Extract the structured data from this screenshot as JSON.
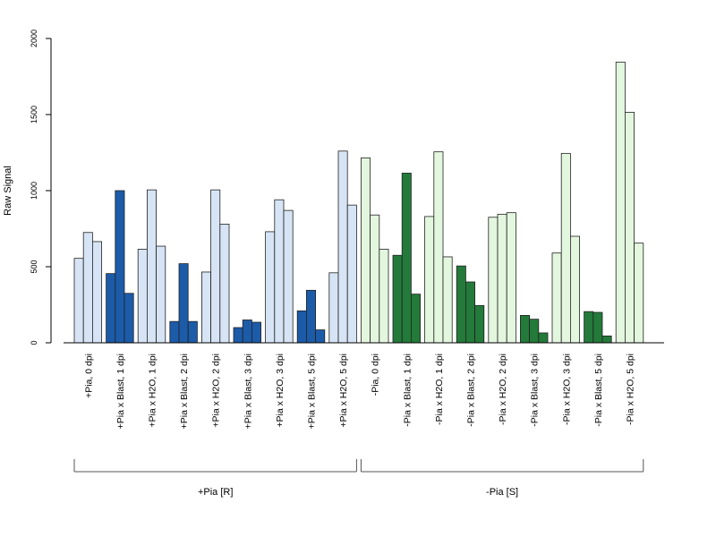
{
  "chart_data": {
    "type": "bar",
    "ylabel": "Raw Signal",
    "ylim": [
      0,
      2000
    ],
    "yticks": [
      0,
      500,
      1000,
      1500,
      2000
    ],
    "grid": false,
    "colors": {
      "pia_plus_light": "#d6e4f5",
      "pia_plus_dark": "#1c5ba8",
      "pia_minus_light": "#e3f6de",
      "pia_minus_dark": "#237a3a",
      "bar_stroke": "#222222"
    },
    "categories": [
      "+Pia, 0 dpi",
      "+Pia x Blast, 1 dpi",
      "+Pia x H2O, 1 dpi",
      "+Pia x Blast, 2 dpi",
      "+Pia x H2O, 2 dpi",
      "+Pia x Blast, 3 dpi",
      "+Pia x H2O, 3 dpi",
      "+Pia x Blast, 5 dpi",
      "+Pia x H2O, 5 dpi",
      "-Pia, 0 dpi",
      "-Pia x Blast, 1 dpi",
      "-Pia x H2O, 1 dpi",
      "-Pia x Blast, 2 dpi",
      "-Pia x H2O, 2 dpi",
      "-Pia x Blast, 3 dpi",
      "-Pia x H2O, 3 dpi",
      "-Pia x Blast, 5 dpi",
      "-Pia x H2O, 5 dpi"
    ],
    "values": [
      [
        555,
        725,
        665
      ],
      [
        455,
        1000,
        325
      ],
      [
        615,
        1005,
        635
      ],
      [
        140,
        520,
        140
      ],
      [
        465,
        1005,
        780
      ],
      [
        100,
        150,
        135
      ],
      [
        730,
        940,
        870
      ],
      [
        210,
        345,
        85
      ],
      [
        460,
        1260,
        905
      ],
      [
        1215,
        840,
        615
      ],
      [
        575,
        1115,
        320
      ],
      [
        830,
        1255,
        565
      ],
      [
        505,
        400,
        245
      ],
      [
        825,
        845,
        855
      ],
      [
        180,
        155,
        65
      ],
      [
        590,
        1245,
        700
      ],
      [
        205,
        200,
        45
      ],
      [
        1845,
        1515,
        655
      ]
    ],
    "bar_color_keys": [
      "pia_plus_light",
      "pia_plus_dark",
      "pia_plus_light",
      "pia_plus_dark",
      "pia_plus_light",
      "pia_plus_dark",
      "pia_plus_light",
      "pia_plus_dark",
      "pia_plus_light",
      "pia_minus_light",
      "pia_minus_dark",
      "pia_minus_light",
      "pia_minus_dark",
      "pia_minus_light",
      "pia_minus_dark",
      "pia_minus_light",
      "pia_minus_dark",
      "pia_minus_light"
    ],
    "groups": [
      {
        "label": "+Pia [R]",
        "start": 0,
        "end": 8
      },
      {
        "label": "-Pia [S]",
        "start": 9,
        "end": 17
      }
    ]
  }
}
